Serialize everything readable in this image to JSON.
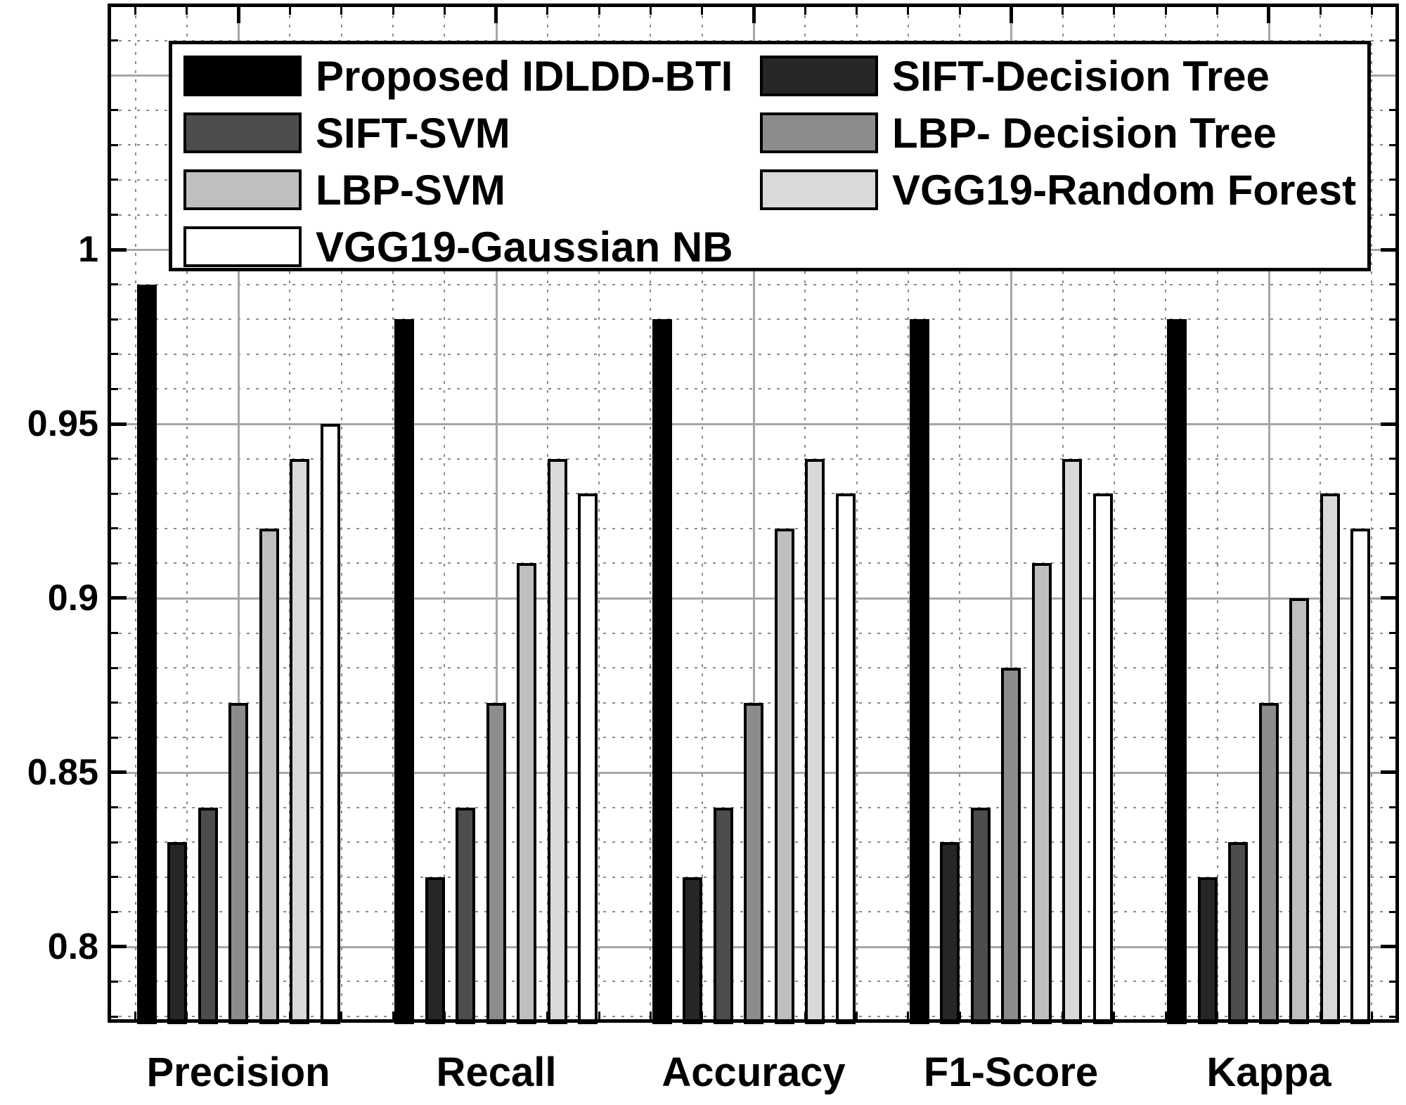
{
  "figure": {
    "background": "#ffffff"
  },
  "chart_data": {
    "type": "bar",
    "title": "",
    "xlabel": "",
    "ylabel": "",
    "categories": [
      "Precision",
      "Recall",
      "Accuracy",
      "F1-Score",
      "Kappa"
    ],
    "series": [
      {
        "name": "Proposed IDLDD-BTI",
        "color": "#000000",
        "values": [
          0.99,
          0.98,
          0.98,
          0.98,
          0.98
        ]
      },
      {
        "name": "SIFT-Decision Tree",
        "color": "#262626",
        "values": [
          0.83,
          0.82,
          0.82,
          0.83,
          0.82
        ]
      },
      {
        "name": "SIFT-SVM",
        "color": "#4d4d4d",
        "values": [
          0.84,
          0.84,
          0.84,
          0.84,
          0.83
        ]
      },
      {
        "name": "LBP- Decision Tree",
        "color": "#8c8c8c",
        "values": [
          0.87,
          0.87,
          0.87,
          0.88,
          0.87
        ]
      },
      {
        "name": "LBP-SVM",
        "color": "#bfbfbf",
        "values": [
          0.92,
          0.91,
          0.92,
          0.91,
          0.9
        ]
      },
      {
        "name": "VGG19-Random Forest",
        "color": "#d9d9d9",
        "values": [
          0.94,
          0.94,
          0.94,
          0.94,
          0.93
        ]
      },
      {
        "name": "VGG19-Gaussian NB",
        "color": "#ffffff",
        "values": [
          0.95,
          0.93,
          0.93,
          0.93,
          0.92
        ]
      }
    ],
    "yticks": [
      {
        "value": 1.0,
        "label": "1"
      },
      {
        "value": 0.95,
        "label": "0.95"
      },
      {
        "value": 0.9,
        "label": "0.9"
      },
      {
        "value": 0.85,
        "label": "0.85"
      },
      {
        "value": 0.8,
        "label": "0.8"
      }
    ],
    "ylim": [
      0.7782,
      1.0706
    ],
    "grid": {
      "major_step": 0.05,
      "minor_step": 0.01,
      "major": true,
      "minor": true
    },
    "legend": {
      "position": "top-inside",
      "columns": [
        [
          0,
          2,
          4,
          6
        ],
        [
          1,
          3,
          5
        ]
      ]
    }
  }
}
